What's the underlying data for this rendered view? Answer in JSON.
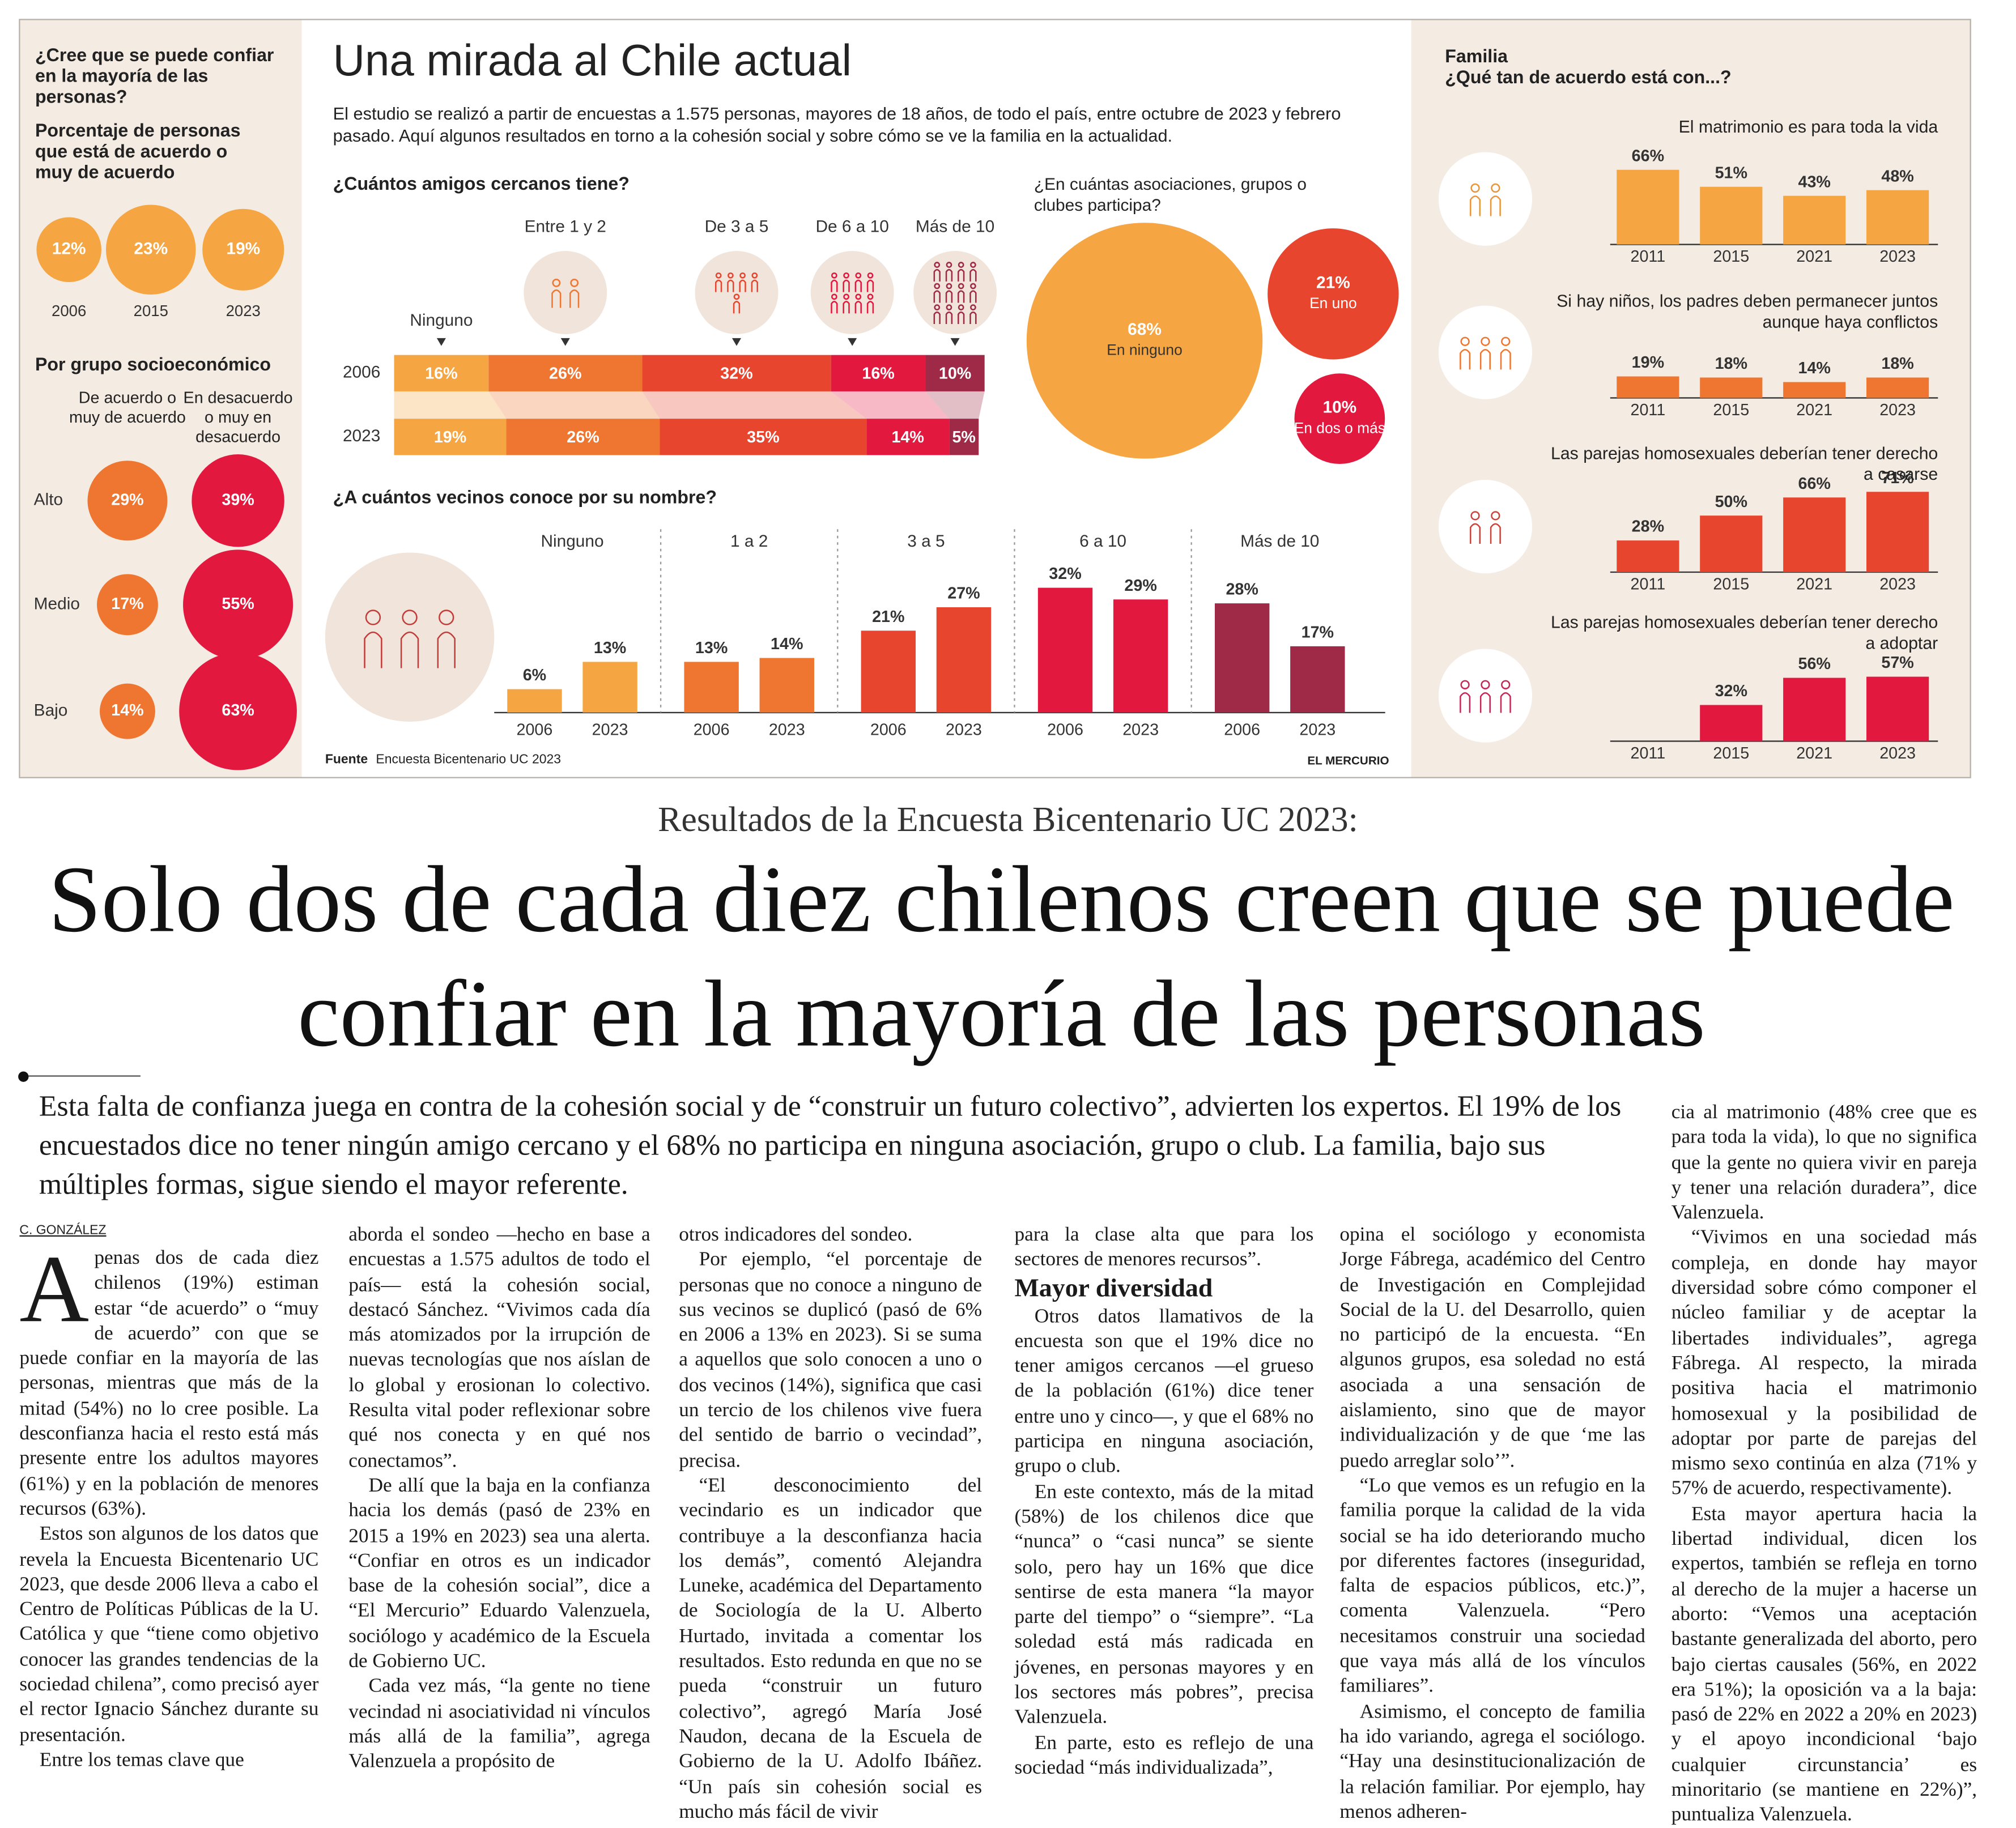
{
  "infographic": {
    "title": "Una mirada al Chile actual",
    "intro": "El estudio se realizó a partir de encuestas a 1.575 personas, mayores de 18 años, de todo el país, entre octubre de 2023 y febrero pasado. Aquí algunos resultados en torno a la cohesión social y sobre cómo se ve la familia en la actualidad.",
    "source_label": "Fuente",
    "source": "Encuesta Bicentenario UC 2023",
    "credit": "EL MERCURIO",
    "family_title": "Familia",
    "family_subtitle": "¿Qué tan de acuerdo está con...?"
  },
  "chart_data": [
    {
      "type": "bubble",
      "title": "¿Cree que se puede confiar en la mayoría de las personas?",
      "subtitle": "Porcentaje de personas que está de acuerdo o muy de acuerdo",
      "categories": [
        "2006",
        "2015",
        "2023"
      ],
      "values": [
        12,
        23,
        19
      ],
      "value_labels": [
        "12%",
        "23%",
        "19%"
      ],
      "color": "#f5a541"
    },
    {
      "type": "bubble",
      "title": "Por grupo socioeconómico",
      "categories": [
        "Alto",
        "Medio",
        "Bajo"
      ],
      "series": [
        {
          "name": "De acuerdo o muy de acuerdo",
          "color": "#ef7630",
          "values": [
            29,
            17,
            14
          ],
          "value_labels": [
            "29%",
            "17%",
            "14%"
          ]
        },
        {
          "name": "En desacuerdo o muy en desacuerdo",
          "color": "#e2183f",
          "values": [
            39,
            55,
            63
          ],
          "value_labels": [
            "39%",
            "55%",
            "63%"
          ]
        }
      ]
    },
    {
      "type": "stacked-bar",
      "title": "¿Cuántos amigos cercanos tiene?",
      "categories": [
        "2006",
        "2023"
      ],
      "xlim": [
        0,
        100
      ],
      "series": [
        {
          "name": "Ninguno",
          "color": "#f5a541",
          "values": [
            16,
            19
          ],
          "value_labels": [
            "16%",
            "19%"
          ]
        },
        {
          "name": "Entre 1 y 2",
          "color": "#ef7630",
          "values": [
            26,
            26
          ],
          "value_labels": [
            "26%",
            "26%"
          ]
        },
        {
          "name": "De 3 a 5",
          "color": "#e8452f",
          "values": [
            32,
            35
          ],
          "value_labels": [
            "32%",
            "35%"
          ]
        },
        {
          "name": "De 6 a 10",
          "color": "#e2183f",
          "values": [
            16,
            14
          ],
          "value_labels": [
            "16%",
            "14%"
          ]
        },
        {
          "name": "Más de 10",
          "color": "#9e2a47",
          "values": [
            10,
            5
          ],
          "value_labels": [
            "10%",
            "5%"
          ]
        }
      ]
    },
    {
      "type": "bubble",
      "title": "¿En cuántas asociaciones, grupos o clubes participa?",
      "categories": [
        "En ninguno",
        "En uno",
        "En dos o más"
      ],
      "values": [
        68,
        21,
        10
      ],
      "value_labels": [
        "68%",
        "21%",
        "10%"
      ],
      "colors": [
        "#f5a541",
        "#e8452f",
        "#e2183f"
      ]
    },
    {
      "type": "grouped-bar",
      "title": "¿A cuántos vecinos conoce por su nombre?",
      "ylim": [
        0,
        100
      ],
      "categories": [
        "Ninguno",
        "1 a 2",
        "3 a 5",
        "6 a 10",
        "Más de 10"
      ],
      "colors": [
        "#f5a541",
        "#ef7630",
        "#e8452f",
        "#e2183f",
        "#9e2a47"
      ],
      "series": [
        {
          "name": "2006",
          "values": [
            6,
            13,
            21,
            32,
            28
          ],
          "value_labels": [
            "6%",
            "13%",
            "21%",
            "32%",
            "28%"
          ]
        },
        {
          "name": "2023",
          "values": [
            13,
            14,
            27,
            29,
            17
          ],
          "value_labels": [
            "13%",
            "14%",
            "27%",
            "29%",
            "17%"
          ]
        }
      ]
    },
    {
      "type": "bar",
      "title": "El matrimonio es para toda la vida",
      "ylim": [
        0,
        100
      ],
      "categories": [
        "2011",
        "2015",
        "2021",
        "2023"
      ],
      "values": [
        66,
        51,
        43,
        48
      ],
      "value_labels": [
        "66%",
        "51%",
        "43%",
        "48%"
      ],
      "color": "#f5a541"
    },
    {
      "type": "bar",
      "title": "Si hay niños, los padres deben permanecer juntos aunque haya conflictos",
      "ylim": [
        0,
        100
      ],
      "categories": [
        "2011",
        "2015",
        "2021",
        "2023"
      ],
      "values": [
        19,
        18,
        14,
        18
      ],
      "value_labels": [
        "19%",
        "18%",
        "14%",
        "18%"
      ],
      "color": "#ef7630"
    },
    {
      "type": "bar",
      "title": "Las parejas homosexuales deberían tener derecho a casarse",
      "ylim": [
        0,
        100
      ],
      "categories": [
        "2011",
        "2015",
        "2021",
        "2023"
      ],
      "values": [
        28,
        50,
        66,
        71
      ],
      "value_labels": [
        "28%",
        "50%",
        "66%",
        "71%"
      ],
      "color": "#e8452f"
    },
    {
      "type": "bar",
      "title": "Las parejas homosexuales deberían tener derecho a adoptar",
      "ylim": [
        0,
        100
      ],
      "categories": [
        "2011",
        "2015",
        "2021",
        "2023"
      ],
      "values": [
        null,
        32,
        56,
        57
      ],
      "value_labels": [
        null,
        "32%",
        "56%",
        "57%"
      ],
      "color": "#e2183f"
    }
  ],
  "article": {
    "kicker": "Resultados de la Encuesta Bicentenario UC 2023:",
    "headline": "Solo dos de cada diez chilenos creen que se puede confiar en la mayoría de las personas",
    "lead": "Esta falta de confianza juega en contra de la cohesión social y de “construir un futuro colectivo”, advierten los expertos. El 19% de los encuestados dice no tener ningún amigo cercano y el 68% no participa en ninguna asociación, grupo o club. La familia, bajo sus múltiples formas, sigue siendo el mayor referente.",
    "byline": "C. GONZÁLEZ",
    "dropcap": "A",
    "subhead": "Mayor diversidad",
    "columns": [
      [
        "penas dos de cada diez chilenos (19%) estiman estar “de acuerdo” o “muy de acuerdo” con que se puede confiar en la mayoría de las personas, mientras que más de la mitad (54%) no lo cree posible. La desconfianza hacia el resto está más presente entre los adultos mayores (61%) y en la población de menores recursos (63%).",
        "Estos son algunos de los datos que revela la Encuesta Bicentenario UC 2023, que desde 2006 lleva a cabo el Centro de Políticas Públicas de la U. Católica y que “tiene como objetivo conocer las grandes tendencias de la sociedad chilena”, como precisó ayer el rector Ignacio Sánchez durante su presentación.",
        "Entre los temas clave que"
      ],
      [
        "aborda el sondeo —hecho en base a encuestas a 1.575 adultos de todo el país— está la cohesión social, destacó Sánchez. “Vivimos cada día más atomizados por la irrupción de nuevas tecnologías que nos aíslan de lo global y erosionan lo colectivo. Resulta vital poder reflexionar sobre qué nos conecta y en qué nos conectamos”.",
        "De allí que la baja en la confianza hacia los demás (pasó de 23% en 2015 a 19% en 2023) sea una alerta. “Confiar en otros es un indicador base de la cohesión social”, dice a “El Mercurio” Eduardo Valenzuela, sociólogo y académico de la Escuela de Gobierno UC.",
        "Cada vez más, “la gente no tiene vecindad ni asociatividad ni vínculos más allá de la familia”, agrega Valenzuela a propósito de"
      ],
      [
        "otros indicadores del sondeo.",
        "Por ejemplo, “el porcentaje de personas que no conoce a ninguno de sus vecinos se duplicó (pasó de 6% en 2006 a 13% en 2023). Si se suma a aquellos que solo conocen a uno o dos vecinos (14%), significa que casi un tercio de los chilenos vive fuera del sentido de barrio o vecindad”, precisa.",
        "“El desconocimiento del vecindario es un indicador que contribuye a la desconfianza hacia los demás”, comentó Alejandra Luneke, académica del Departamento de Sociología de la U. Alberto Hurtado, invitada a comentar los resultados. Esto redunda en que no se pueda “construir un futuro colectivo”, agregó María José Naudon, decana de la Escuela de Gobierno de la U. Adolfo Ibáñez. “Un país sin cohesión social es mucho más fácil de vivir"
      ],
      [
        "para la clase alta que para los sectores de menores recursos”.",
        "Otros datos llamativos de la encuesta son que el 19% dice no tener amigos cercanos —el grueso de la población (61%) dice tener entre uno y cinco—, y que el 68% no participa en ninguna asociación, grupo o club.",
        "En este contexto, más de la mitad (58%) de los chilenos dice que “nunca” o “casi nunca” se siente solo, pero hay un 16% que dice sentirse de esta manera “la mayor parte del tiempo” o “siempre”. “La soledad está más radicada en jóvenes, en personas mayores y en los sectores más pobres”, precisa Valenzuela.",
        "En parte, esto es reflejo de una sociedad “más individualizada”,"
      ],
      [
        "opina el sociólogo y economista Jorge Fábrega, académico del Centro de Investigación en Complejidad Social de la U. del Desarrollo, quien no participó de la encuesta. “En algunos grupos, esa soledad no está asociada a una sensación de aislamiento, sino que de mayor individualización y de que ‘me las puedo arreglar solo’”.",
        "“Lo que vemos es un refugio en la familia porque la calidad de la vida social se ha ido deteriorando mucho por diferentes factores (inseguridad, falta de espacios públicos, etc.)”, comenta Valenzuela. “Pero necesitamos construir una sociedad que vaya más allá de los vínculos familiares”.",
        "Asimismo, el concepto de familia ha ido variando, agrega el sociólogo. “Hay una desinstitucionalización de la relación familiar. Por ejemplo, hay menos adheren-"
      ],
      [
        "cia al matrimonio (48% cree que es para toda la vida), lo que no significa que la gente no quiera vivir en pareja y tener una relación duradera”, dice Valenzuela.",
        "“Vivimos en una sociedad más compleja, en donde hay mayor diversidad sobre cómo componer el núcleo familiar y de aceptar la libertades individuales”, agrega Fábrega. Al respecto, la mirada positiva hacia el matrimonio homosexual y la posibilidad de adoptar por parte de parejas del mismo sexo continúa en alza (71% y 57% de acuerdo, respectivamente).",
        "Esta mayor apertura hacia la libertad individual, dicen los expertos, también se refleja en torno al derecho de la mujer a hacerse un aborto: “Vemos una aceptación bastante generalizada del aborto, pero bajo ciertas causales (56%, en 2022 era 51%); la oposición va a la baja: pasó de 22% en 2022 a 20% en 2023) y el apoyo incondicional ‘bajo cualquier circunstancia’ es minoritario (se mantiene en 22%)”, puntualiza Valenzuela."
      ]
    ]
  }
}
